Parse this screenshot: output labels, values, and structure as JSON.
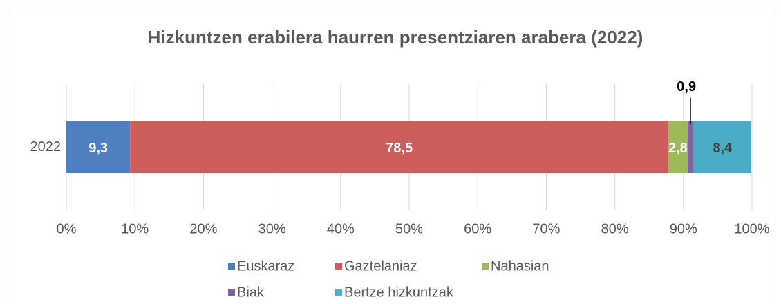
{
  "chart_data": {
    "type": "stacked_bar_horizontal",
    "title": "Hizkuntzen erabilera haurren presentziaren arabera (2022)",
    "categories": [
      "2022"
    ],
    "series": [
      {
        "name": "Euskaraz",
        "color": "#4f7fc0",
        "label_color": "#ffffff",
        "values": [
          9.3
        ],
        "value_labels": [
          "9,3"
        ]
      },
      {
        "name": "Gaztelaniaz",
        "color": "#cd5d5c",
        "label_color": "#ffffff",
        "values": [
          78.5
        ],
        "value_labels": [
          "78,5"
        ]
      },
      {
        "name": "Nahasian",
        "color": "#9bbb59",
        "label_color": "#ffffff",
        "values": [
          2.8
        ],
        "value_labels": [
          "2,8"
        ]
      },
      {
        "name": "Biak",
        "color": "#8064a2",
        "label_color": "#000000",
        "values": [
          0.9
        ],
        "value_labels": [
          "0,9"
        ]
      },
      {
        "name": "Bertze hizkuntzak",
        "color": "#4bacc6",
        "label_color": "#404040",
        "values": [
          8.4
        ],
        "value_labels": [
          "8,4"
        ]
      }
    ],
    "xlim": [
      0,
      100
    ],
    "xticks": [
      {
        "value": 0,
        "label": "0%"
      },
      {
        "value": 10,
        "label": "10%"
      },
      {
        "value": 20,
        "label": "20%"
      },
      {
        "value": 30,
        "label": "30%"
      },
      {
        "value": 40,
        "label": "40%"
      },
      {
        "value": 50,
        "label": "50%"
      },
      {
        "value": 60,
        "label": "60%"
      },
      {
        "value": 70,
        "label": "70%"
      },
      {
        "value": 80,
        "label": "80%"
      },
      {
        "value": 90,
        "label": "90%"
      },
      {
        "value": 100,
        "label": "100%"
      }
    ],
    "grid": true,
    "legend": "bottom"
  }
}
